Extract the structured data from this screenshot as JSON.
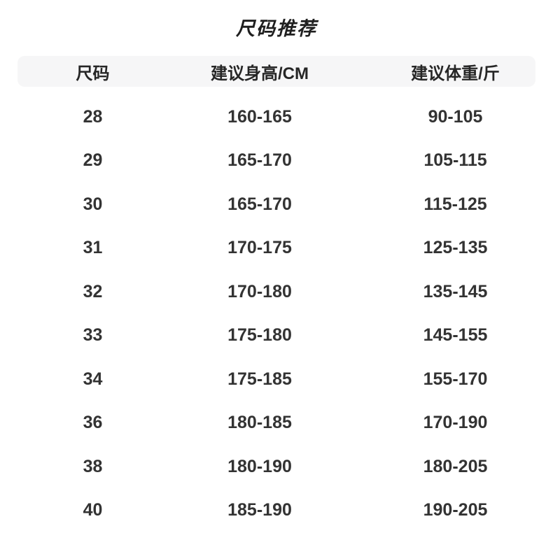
{
  "page": {
    "background_color": "#ffffff",
    "header_band_color": "#f6f6f7",
    "text_color": "#333333",
    "title_color": "#1f1f1f"
  },
  "chart_data": {
    "type": "table",
    "title": "尺码推荐",
    "columns": [
      "尺码",
      "建议身高/CM",
      "建议体重/斤"
    ],
    "rows": [
      [
        "28",
        "160-165",
        "90-105"
      ],
      [
        "29",
        "165-170",
        "105-115"
      ],
      [
        "30",
        "165-170",
        "115-125"
      ],
      [
        "31",
        "170-175",
        "125-135"
      ],
      [
        "32",
        "170-180",
        "135-145"
      ],
      [
        "33",
        "175-180",
        "145-155"
      ],
      [
        "34",
        "175-185",
        "155-170"
      ],
      [
        "36",
        "180-185",
        "170-190"
      ],
      [
        "38",
        "180-190",
        "180-205"
      ],
      [
        "40",
        "185-190",
        "190-205"
      ]
    ],
    "layout": {
      "grid": false,
      "header_background": "#f6f6f7",
      "row_separators": false
    }
  }
}
